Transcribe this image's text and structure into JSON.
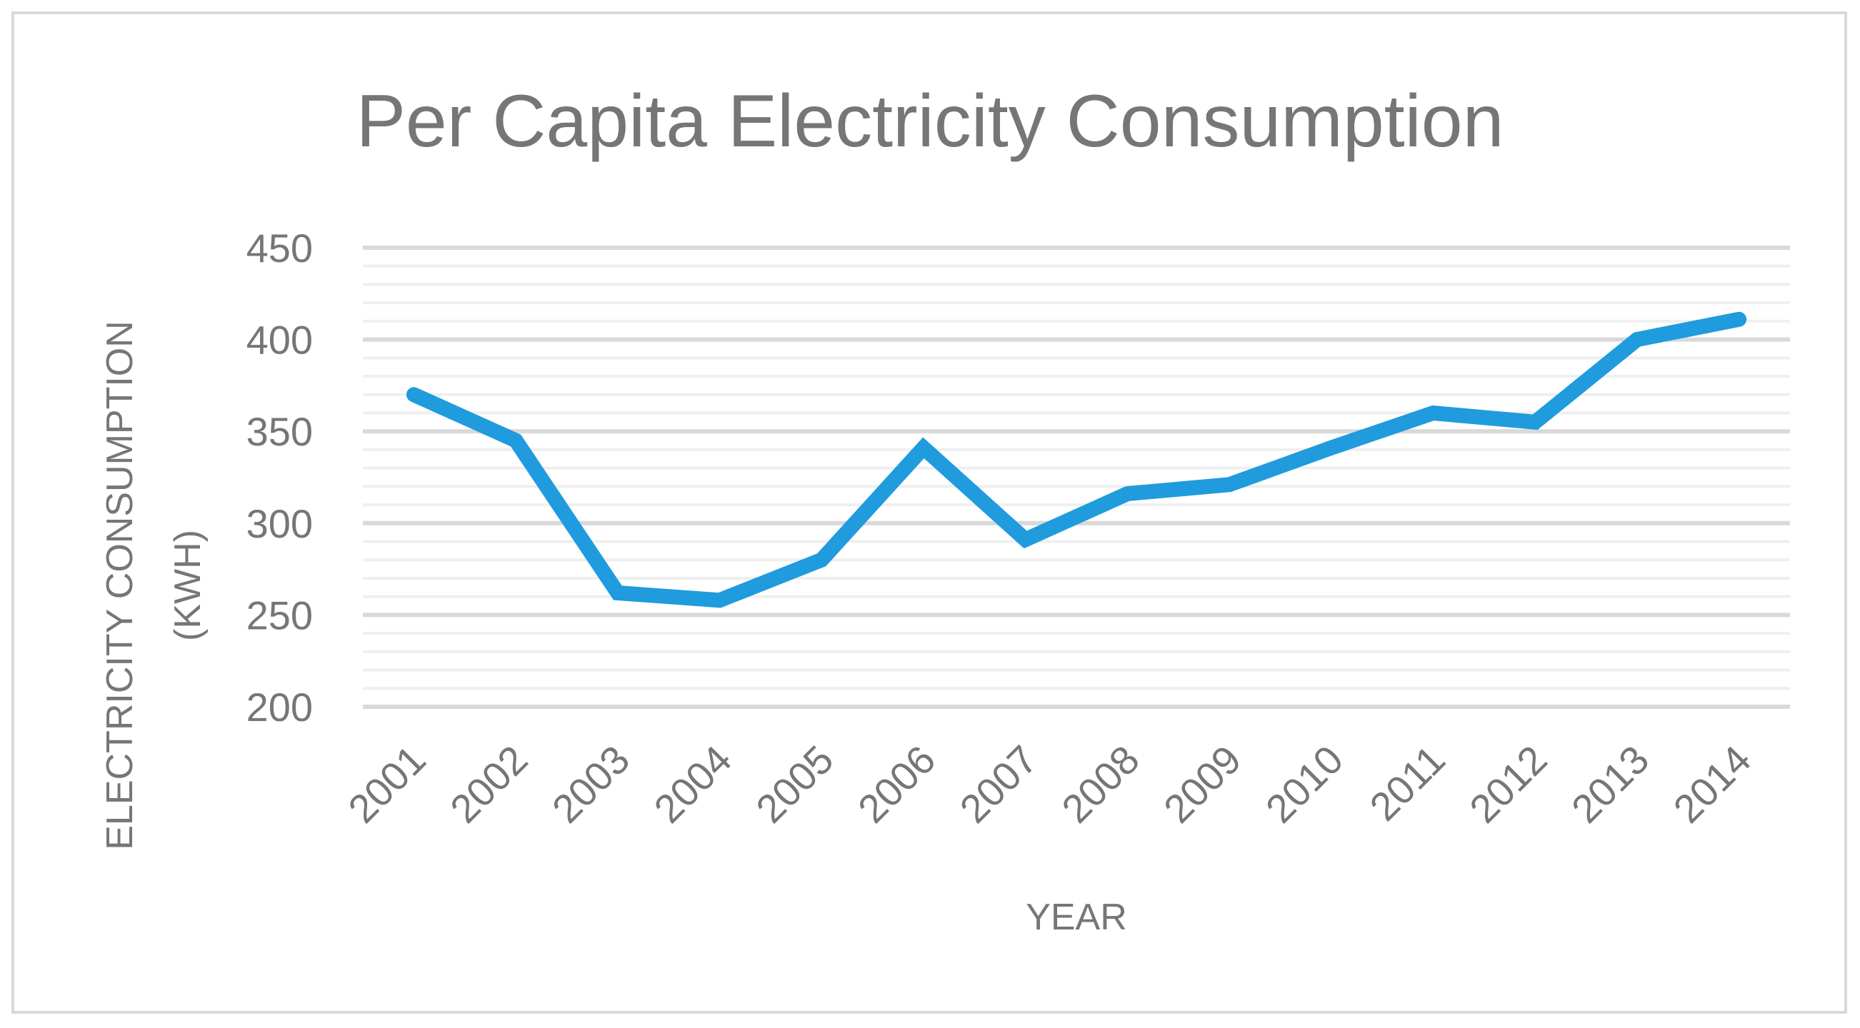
{
  "chart_data": {
    "type": "line",
    "title": "Per Capita Electricity Consumption",
    "xlabel": "YEAR",
    "ylabel_lines": [
      "ELECTRICITY CONSUMPTION",
      "(KWH)"
    ],
    "categories": [
      "2001",
      "2002",
      "2003",
      "2004",
      "2005",
      "2006",
      "2007",
      "2008",
      "2009",
      "2010",
      "2011",
      "2012",
      "2013",
      "2014"
    ],
    "series": [
      {
        "name": "Per Capita Electricity Consumption",
        "color": "#1f9bde",
        "values": [
          370,
          345,
          262,
          258,
          280,
          341,
          291,
          316,
          321,
          341,
          360,
          355,
          400,
          411
        ]
      }
    ],
    "ylim": [
      200,
      450
    ],
    "yticks": [
      "450",
      "400",
      "350",
      "300",
      "250",
      "200"
    ],
    "ytick_values": [
      450,
      400,
      350,
      300,
      250,
      200
    ],
    "minor_gridlines": true,
    "colors": {
      "line": "#1f9bde",
      "text": "#767676",
      "major_grid": "#d9d9d9",
      "minor_grid": "#efefef",
      "frame": "#d9d9d9"
    }
  }
}
